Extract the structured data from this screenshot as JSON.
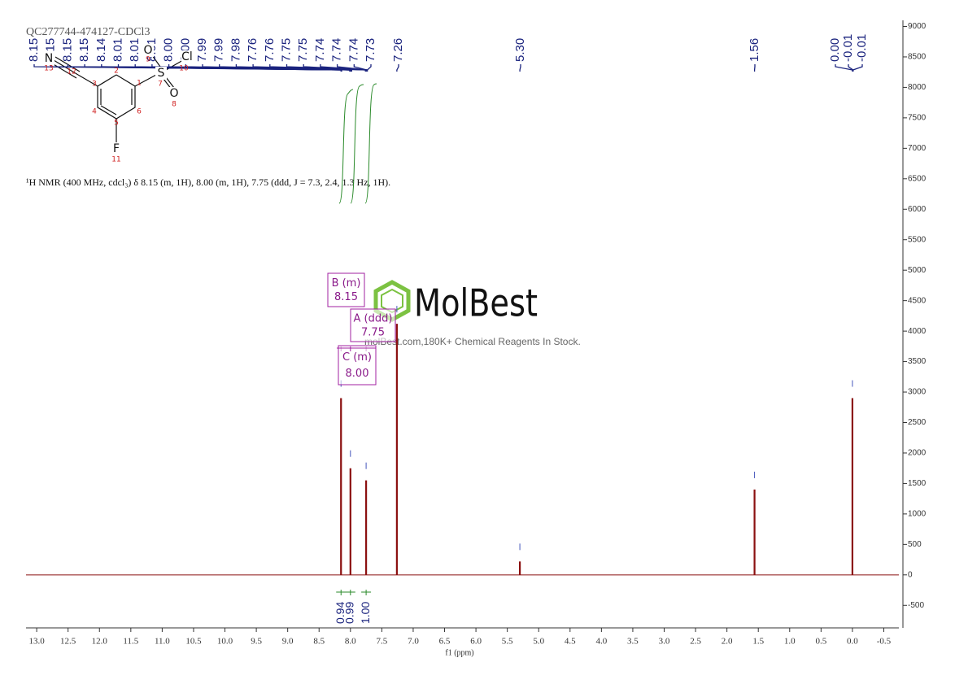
{
  "chart_data": {
    "type": "nmr",
    "title": "QC277744-474127-CDCl3",
    "description": "¹H NMR (400 MHz, cdcl₃) δ 8.15 (m, 1H), 8.00 (m, 1H), 7.75 (ddd, J = 7.3, 2.4, 1.3 Hz, 1H).",
    "x_label": "f1 (ppm)",
    "xlim": [
      13.17,
      -0.74
    ],
    "ylim": [
      -870,
      9100
    ],
    "xticks": [
      {
        "value": 13,
        "label": "13.0"
      },
      12.5,
      {
        "value": 12,
        "label": "12.0"
      },
      11.5,
      {
        "value": 11,
        "label": "11.0"
      },
      10.5,
      {
        "value": 10,
        "label": "10.0"
      },
      9.5,
      {
        "value": 9,
        "label": "9.0"
      },
      8.5,
      {
        "value": 8,
        "label": "8.0"
      },
      7.5,
      {
        "value": 7,
        "label": "7.0"
      },
      6.5,
      {
        "value": 6,
        "label": "6.0"
      },
      5.5,
      {
        "value": 5,
        "label": "5.0"
      },
      4.5,
      {
        "value": 4,
        "label": "4.0"
      },
      3.5,
      {
        "value": 3,
        "label": "3.0"
      },
      2.5,
      {
        "value": 2,
        "label": "2.0"
      },
      1.5,
      {
        "value": 1,
        "label": "1.0"
      },
      0.5,
      {
        "value": 0,
        "label": "0.0"
      },
      -0.5
    ],
    "yticks": [
      9000,
      8500,
      8000,
      7500,
      7000,
      6500,
      6000,
      5500,
      5000,
      4500,
      4000,
      3500,
      3000,
      2500,
      2000,
      1500,
      1000,
      500,
      0,
      -500
    ],
    "color": "#8b1010",
    "peaks": {
      "x": [
        8.15,
        8.0,
        7.75,
        7.26,
        5.3,
        1.56,
        0.0
      ],
      "values": [
        2900,
        1750,
        1550,
        4120,
        220,
        1400,
        2900
      ]
    },
    "peak_labels": [
      8.15,
      8.15,
      8.15,
      8.15,
      8.14,
      8.01,
      8.01,
      8.01,
      {
        "value": 8,
        "label": "8.00"
      },
      {
        "value": 8,
        "label": "8.00"
      },
      7.99,
      7.99,
      7.98,
      7.76,
      7.76,
      7.75,
      7.75,
      7.74,
      7.74,
      7.74,
      7.73,
      7.26,
      {
        "value": 5.3,
        "label": "5.30"
      },
      1.56,
      {
        "value": 0,
        "label": "0.00"
      },
      -0.01,
      -0.01
    ],
    "integrals": {
      "x": [
        8.15,
        8.0,
        7.75
      ],
      "values": [
        0.94,
        0.99,
        1.0
      ],
      "value_labels": [
        "0.94",
        "0.99",
        "1.00"
      ]
    },
    "multiplets": [
      {
        "name": "B (m)",
        "shift": 8.15
      },
      {
        "name": "A (ddd)",
        "shift": 7.75
      },
      {
        "name": "C (m)",
        "shift": {
          "value": 8,
          "label": "8.00"
        }
      }
    ],
    "watermark": {
      "brand": "MolBest",
      "slogan": "molBest.com,180K+ Chemical Reagents In Stock."
    },
    "molecule": {
      "atoms": [
        {
          "symbol": "N",
          "number": 13
        },
        {
          "number": 12
        },
        {
          "number": 3
        },
        {
          "number": 2
        },
        {
          "number": 1
        },
        {
          "number": 4
        },
        {
          "number": 6
        },
        {
          "number": 5
        },
        {
          "symbol": "F",
          "number": 11
        },
        {
          "symbol": "S",
          "number": 7
        },
        {
          "symbol": "O",
          "number": 9
        },
        {
          "symbol": "O",
          "number": 8
        },
        {
          "symbol": "Cl",
          "number": 10
        }
      ]
    }
  }
}
